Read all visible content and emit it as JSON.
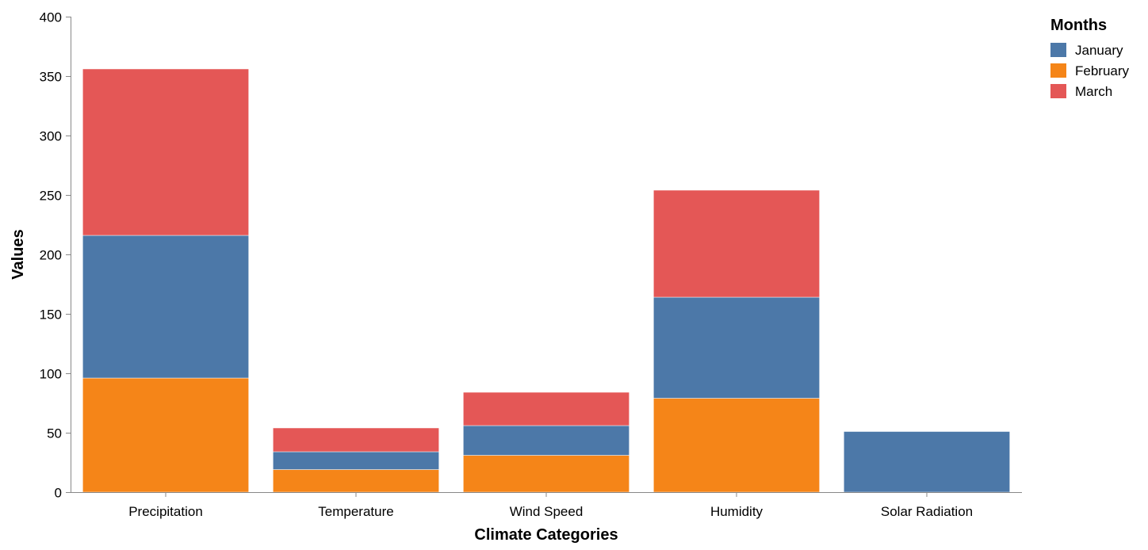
{
  "chart_data": {
    "type": "bar",
    "stacked": true,
    "title": "",
    "xlabel": "Climate Categories",
    "ylabel": "Values",
    "ylim": [
      0,
      400
    ],
    "yticks": [
      0,
      50,
      100,
      150,
      200,
      250,
      300,
      350,
      400
    ],
    "grid": false,
    "categories": [
      "Precipitation",
      "Temperature",
      "Wind Speed",
      "Humidity",
      "Solar Radiation"
    ],
    "stack_order": [
      "February",
      "January",
      "March"
    ],
    "series": [
      {
        "name": "January",
        "color": "#4c78a8",
        "values": [
          120,
          15,
          25,
          85,
          51
        ]
      },
      {
        "name": "February",
        "color": "#f58518",
        "values": [
          96,
          19,
          31,
          79,
          0
        ]
      },
      {
        "name": "March",
        "color": "#e45756",
        "values": [
          140,
          20,
          28,
          90,
          0
        ]
      }
    ],
    "legend": {
      "title": "Months",
      "position": "top-right",
      "items": [
        "January",
        "February",
        "March"
      ]
    }
  }
}
